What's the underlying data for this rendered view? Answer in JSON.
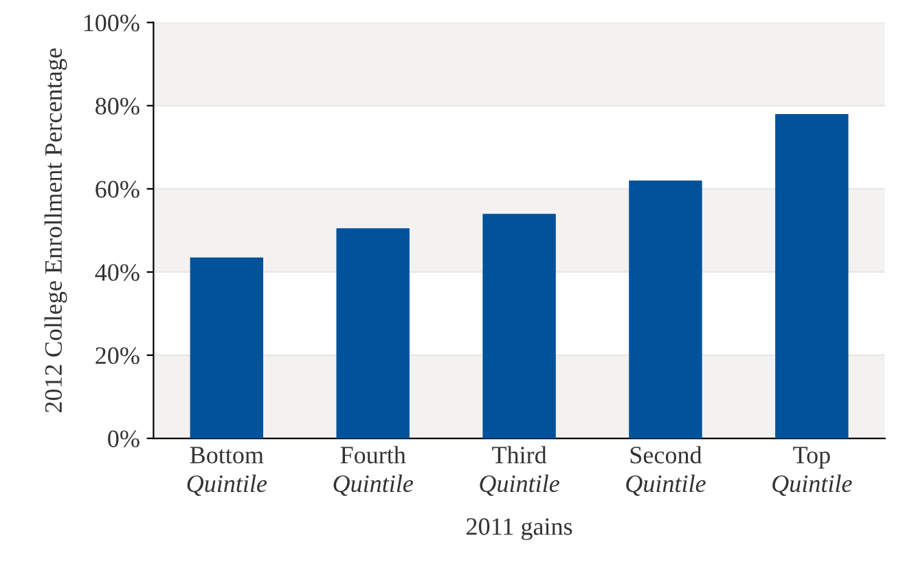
{
  "chart_data": {
    "type": "bar",
    "ylabel": "2012 College Enrollment Percentage",
    "xlabel": "2011 gains",
    "categories": [
      "Bottom\nQuintile",
      "Fourth\nQuintile",
      "Third\nQuintile",
      "Second\nQuintile",
      "Top\nQuintile"
    ],
    "values": [
      43.5,
      50.5,
      54,
      62,
      78
    ],
    "color": "#00529b",
    "ylim": [
      0,
      100
    ],
    "yticks": [
      {
        "value": 0,
        "label": "0%"
      },
      {
        "value": 20,
        "label": "20%"
      },
      {
        "value": 40,
        "label": "40%"
      },
      {
        "value": 60,
        "label": "60%"
      },
      {
        "value": 80,
        "label": "80%"
      },
      {
        "value": 100,
        "label": "100%"
      }
    ],
    "grid": "y"
  }
}
